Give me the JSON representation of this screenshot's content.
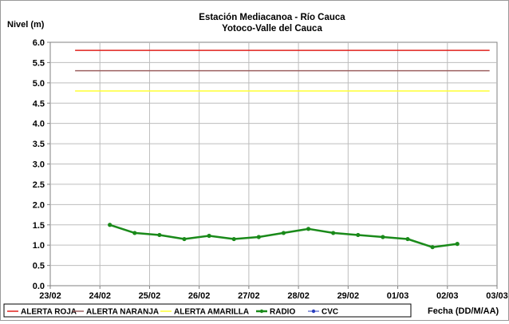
{
  "chart_data": {
    "type": "line",
    "title": "Estación Mediacanoa - Río Cauca",
    "subtitle": "Yotoco-Valle del Cauca",
    "ylabel": "Nivel (m)",
    "xlabel": "Fecha (DD/M/AA)",
    "ylim": [
      0,
      6
    ],
    "xlim": [
      0,
      9
    ],
    "y_ticks": [
      "0.0",
      "0.5",
      "1.0",
      "1.5",
      "2.0",
      "2.5",
      "3.0",
      "3.5",
      "4.0",
      "4.5",
      "5.0",
      "5.5",
      "6.0"
    ],
    "x_ticks": [
      "23/02",
      "24/02",
      "25/02",
      "26/02",
      "27/02",
      "28/02",
      "29/02",
      "01/03",
      "02/03",
      "03/03"
    ],
    "thresholds": [
      {
        "name": "ALERTA ROJA",
        "value": 5.8,
        "color": "#e0201c",
        "x_start": 0.5,
        "x_end": 8.85
      },
      {
        "name": "ALERTA NARANJA",
        "value": 5.3,
        "color": "#9c6060",
        "x_start": 0.5,
        "x_end": 8.85
      },
      {
        "name": "ALERTA AMARILLA",
        "value": 4.8,
        "color": "#ffff33",
        "x_start": 0.5,
        "x_end": 8.85
      }
    ],
    "series": [
      {
        "name": "RADIO",
        "color": "#1a8a1a",
        "x": [
          1.2,
          1.7,
          2.2,
          2.7,
          3.2,
          3.7,
          4.2,
          4.7,
          5.2,
          5.7,
          6.2,
          6.7,
          7.2,
          7.7,
          8.2
        ],
        "values": [
          1.5,
          1.3,
          1.25,
          1.15,
          1.23,
          1.15,
          1.2,
          1.3,
          1.4,
          1.3,
          1.25,
          1.2,
          1.15,
          0.95,
          1.03
        ]
      },
      {
        "name": "CVC",
        "color": "#2a3fbf",
        "x": [],
        "values": []
      }
    ],
    "grid": true,
    "legend": "bottom"
  }
}
